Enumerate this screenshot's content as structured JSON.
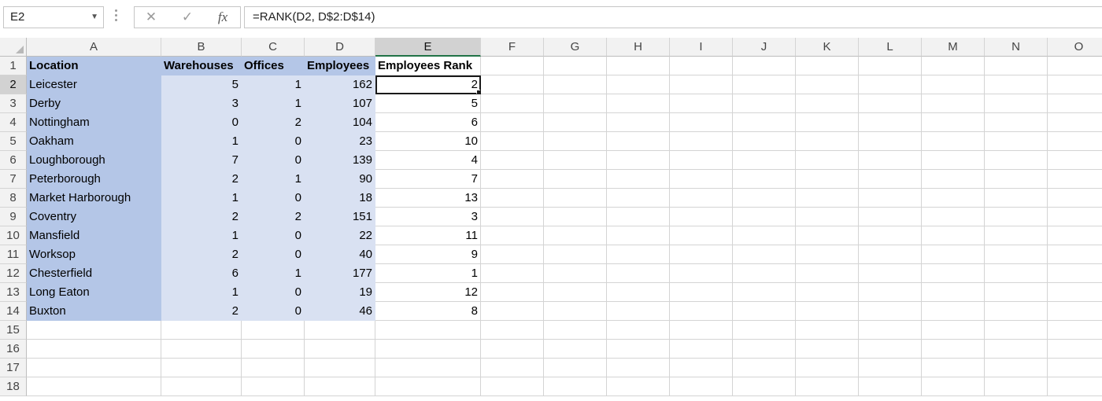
{
  "formula_bar": {
    "name_box": "E2",
    "cancel_icon": "✕",
    "enter_icon": "✓",
    "fx_label": "fx",
    "formula": "=RANK(D2, D$2:D$14)"
  },
  "columns": [
    "A",
    "B",
    "C",
    "D",
    "E",
    "F",
    "G",
    "H",
    "I",
    "J",
    "K",
    "L",
    "M",
    "N",
    "O"
  ],
  "selected_column": "E",
  "selected_row": 2,
  "header_row": [
    "Location",
    "Warehouses",
    "Offices",
    "Employees",
    "Employees Rank"
  ],
  "data_rows": [
    [
      "Leicester",
      "5",
      "1",
      "162",
      "2"
    ],
    [
      "Derby",
      "3",
      "1",
      "107",
      "5"
    ],
    [
      "Nottingham",
      "0",
      "2",
      "104",
      "6"
    ],
    [
      "Oakham",
      "1",
      "0",
      "23",
      "10"
    ],
    [
      "Loughborough",
      "7",
      "0",
      "139",
      "4"
    ],
    [
      "Peterborough",
      "2",
      "1",
      "90",
      "7"
    ],
    [
      "Market Harborough",
      "1",
      "0",
      "18",
      "13"
    ],
    [
      "Coventry",
      "2",
      "2",
      "151",
      "3"
    ],
    [
      "Mansfield",
      "1",
      "0",
      "22",
      "11"
    ],
    [
      "Worksop",
      "2",
      "0",
      "40",
      "9"
    ],
    [
      "Chesterfield",
      "6",
      "1",
      "177",
      "1"
    ],
    [
      "Long Eaton",
      "1",
      "0",
      "19",
      "12"
    ],
    [
      "Buxton",
      "2",
      "0",
      "46",
      "8"
    ]
  ],
  "row_numbers": [
    "1",
    "2",
    "3",
    "4",
    "5",
    "6",
    "7",
    "8",
    "9",
    "10",
    "11",
    "12",
    "13",
    "14",
    "15",
    "16",
    "17",
    "18"
  ],
  "colors": {
    "location_fill": "#b4c6e7",
    "data_fill": "#d9e1f2",
    "selection_accent": "#217346"
  }
}
